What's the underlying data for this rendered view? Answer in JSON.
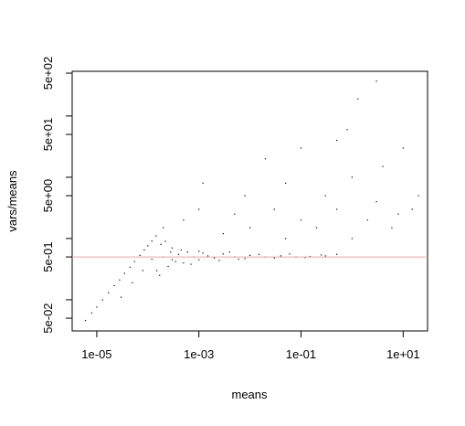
{
  "chart_data": {
    "type": "scatter",
    "xlabel": "means",
    "ylabel": "vars/means",
    "xlog": true,
    "ylog": true,
    "xlim": [
      3.3e-06,
      30
    ],
    "ylim": [
      0.031,
      536
    ],
    "xticks": [
      {
        "value": 1e-05,
        "label": "1e-05"
      },
      {
        "value": 0.001,
        "label": "1e-03"
      },
      {
        "value": 0.1,
        "label": "1e-01"
      },
      {
        "value": 10,
        "label": "1e+01"
      }
    ],
    "yticks": [
      {
        "value": 0.05,
        "label": "5e-02"
      },
      {
        "value": 0.5,
        "label": "5e-01"
      },
      {
        "value": 5,
        "label": "5e+00"
      },
      {
        "value": 50,
        "label": "5e+01"
      },
      {
        "value": 500,
        "label": "5e+02"
      }
    ],
    "yminor_ticks": [
      0.1,
      1,
      10,
      100
    ],
    "hline": 0.5,
    "hline_color": "#f4a0a0",
    "color": "#000000",
    "x": [
      6e-06,
      8e-06,
      1e-05,
      1.3e-05,
      1.7e-05,
      2.2e-05,
      2.8e-05,
      3.5e-05,
      4.5e-05,
      5.5e-05,
      7e-05,
      8.5e-05,
      0.0001,
      0.00012,
      0.000145,
      3e-05,
      5e-05,
      8e-05,
      0.00012,
      0.00015,
      0.00018,
      0.0002,
      0.00025,
      0.0003,
      0.0003,
      0.0004,
      0.0005,
      0.0006,
      0.0008,
      0.001,
      0.001,
      0.0015,
      0.002,
      0.003,
      0.005,
      0.008,
      0.01,
      0.02,
      0.04,
      0.08,
      0.15,
      0.3,
      0.5,
      0.00017,
      0.00022,
      0.00028,
      0.00035,
      0.00045,
      0.0007,
      0.0012,
      0.0025,
      0.004,
      0.006,
      0.015,
      0.03,
      0.06,
      0.12,
      0.25,
      0.0002,
      0.0005,
      0.001,
      0.0012,
      0.003,
      0.005,
      0.008,
      0.01,
      0.02,
      0.03,
      0.05,
      0.05,
      0.1,
      0.1,
      0.2,
      0.3,
      0.5,
      0.5,
      0.8,
      1,
      1,
      1.3,
      2,
      3,
      3,
      4,
      6,
      8,
      10,
      15,
      20
    ],
    "y": [
      0.046,
      0.061,
      0.076,
      0.099,
      0.13,
      0.17,
      0.21,
      0.27,
      0.34,
      0.42,
      0.53,
      0.65,
      0.76,
      0.91,
      1.1,
      0.11,
      0.19,
      0.3,
      0.46,
      0.3,
      0.8,
      0.5,
      0.35,
      0.7,
      0.45,
      0.55,
      0.4,
      0.6,
      0.5,
      0.45,
      0.62,
      0.52,
      0.48,
      0.56,
      0.5,
      0.47,
      0.53,
      0.5,
      0.52,
      0.5,
      0.51,
      0.52,
      0.55,
      0.25,
      0.9,
      0.6,
      0.42,
      0.65,
      0.38,
      0.58,
      0.44,
      0.6,
      0.46,
      0.55,
      0.48,
      0.56,
      0.49,
      0.54,
      1.5,
      2,
      3,
      8,
      1.2,
      2.5,
      5,
      1.5,
      20,
      3,
      1,
      8,
      2,
      30,
      1.5,
      5,
      3,
      40,
      60,
      1,
      10,
      190,
      2,
      4,
      370,
      15,
      1.5,
      2.5,
      30,
      3,
      5
    ]
  }
}
